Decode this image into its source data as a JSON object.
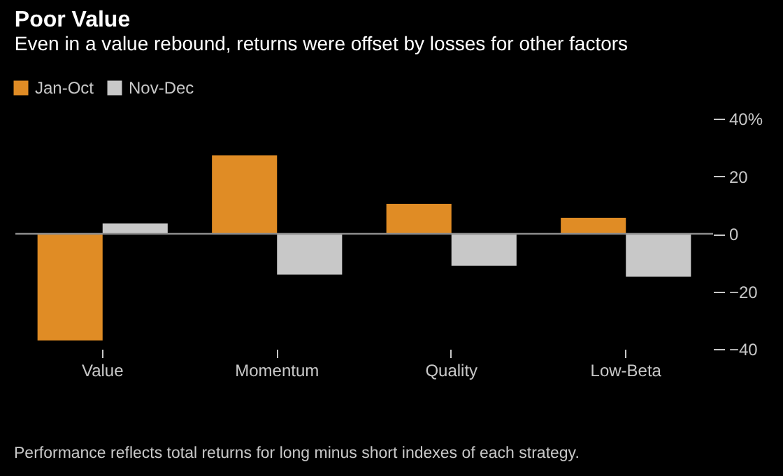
{
  "chart_data": {
    "type": "bar",
    "title": "Poor Value",
    "subtitle": "Even in a value rebound, returns were offset by losses for other factors",
    "categories": [
      "Value",
      "Momentum",
      "Quality",
      "Low-Beta"
    ],
    "series": [
      {
        "name": "Jan-Oct",
        "color": "#e08c25",
        "values": [
          -37.0,
          27.3,
          10.4,
          5.6
        ]
      },
      {
        "name": "Nov-Dec",
        "color": "#c8c8c8",
        "values": [
          3.6,
          -14.2,
          -11.1,
          -14.9
        ]
      }
    ],
    "ylim": [
      -40,
      40
    ],
    "yticks": [
      {
        "value": 40,
        "label": "40%"
      },
      20,
      0,
      -20,
      -40
    ],
    "ref_lines": [
      {
        "axis": "y",
        "value": 0,
        "color": "#8c8c8c"
      }
    ],
    "grid": false,
    "legend": "top left",
    "annotations": [
      "Performance reflects total returns for long minus short indexes of each strategy."
    ]
  }
}
